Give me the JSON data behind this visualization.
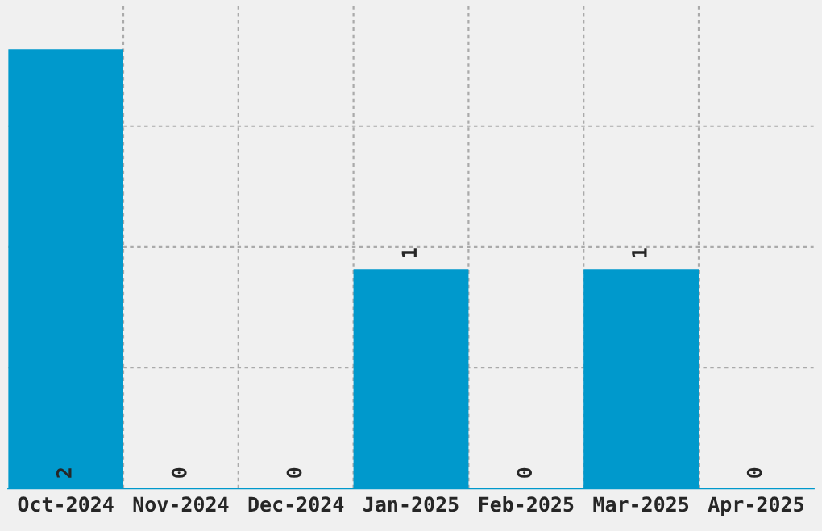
{
  "chart_data": {
    "type": "bar",
    "categories": [
      "Oct-2024",
      "Nov-2024",
      "Dec-2024",
      "Jan-2025",
      "Feb-2025",
      "Mar-2025",
      "Apr-2025"
    ],
    "values": [
      2,
      0,
      0,
      1,
      0,
      1,
      0
    ],
    "color": "#0099cc",
    "ylim": [
      0,
      2.2
    ],
    "yticks": [
      {
        "value": 0.55,
        "label": null
      },
      {
        "value": 1.1,
        "label": null
      },
      {
        "value": 1.65,
        "label": null
      }
    ],
    "tick_labels": "x",
    "grid": true,
    "data_labels": true
  }
}
